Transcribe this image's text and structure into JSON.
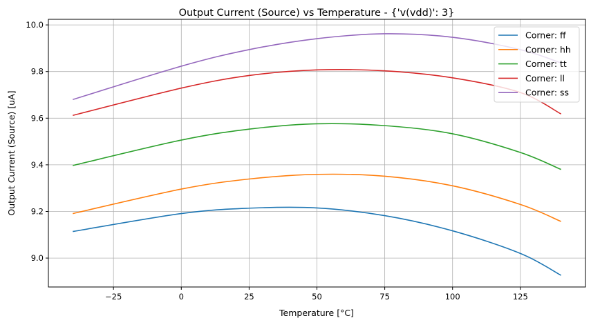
{
  "chart_data": {
    "type": "line",
    "title": "Output Current (Source) vs Temperature - {'v(vdd)': 3}",
    "xlabel": "Temperature [°C]",
    "ylabel": "Output Current (Source) [uA]",
    "xlim": [
      -49,
      149
    ],
    "ylim": [
      8.876,
      10.024
    ],
    "xticks": [
      -25,
      0,
      25,
      50,
      75,
      100,
      125
    ],
    "xtick_labels": [
      "−25",
      "0",
      "25",
      "50",
      "75",
      "100",
      "125"
    ],
    "yticks": [
      9.0,
      9.2,
      9.4,
      9.6,
      9.8,
      10.0
    ],
    "ytick_labels": [
      "9.0",
      "9.2",
      "9.4",
      "9.6",
      "9.8",
      "10.0"
    ],
    "grid": true,
    "legend_position": "top-right",
    "x": [
      -40,
      0,
      25,
      50,
      75,
      100,
      125,
      140
    ],
    "series": [
      {
        "name": "Corner: ff",
        "color": "#1f77b4",
        "values": [
          9.114,
          9.191,
          9.214,
          9.215,
          9.182,
          9.117,
          9.02,
          8.926
        ]
      },
      {
        "name": "Corner: hh",
        "color": "#ff7f0e",
        "values": [
          9.191,
          9.296,
          9.339,
          9.359,
          9.351,
          9.31,
          9.23,
          9.157
        ]
      },
      {
        "name": "Corner: tt",
        "color": "#2ca02c",
        "values": [
          9.397,
          9.506,
          9.553,
          9.576,
          9.568,
          9.533,
          9.453,
          9.38
        ]
      },
      {
        "name": "Corner: ll",
        "color": "#d62728",
        "values": [
          9.612,
          9.729,
          9.783,
          9.807,
          9.803,
          9.773,
          9.71,
          9.618
        ]
      },
      {
        "name": "Corner: ss",
        "color": "#9467bd",
        "values": [
          9.68,
          9.823,
          9.894,
          9.941,
          9.962,
          9.947,
          9.894,
          9.837
        ]
      }
    ]
  }
}
